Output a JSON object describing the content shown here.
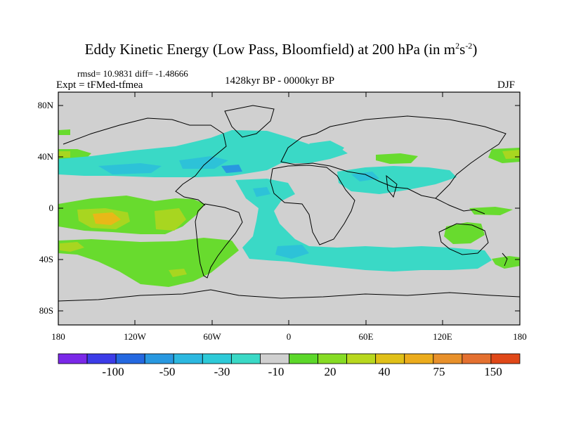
{
  "title_main": "Eddy Kinetic Energy (Low Pass, Bloomfield) at 200 hPa (in m",
  "title_units_sup1": "2",
  "title_units_s": "s",
  "title_units_sup2": "-2",
  "title_close": ")",
  "stats": "rmsd= 10.9831 diff= -1.48666",
  "experiment": "Expt = tFMed-tfmea",
  "period": "1428kyr BP - 0000kyr BP",
  "season": "DJF",
  "map": {
    "lat_ticks": [
      "80N",
      "40N",
      "0",
      "40S",
      "80S"
    ],
    "lon_ticks": [
      "180",
      "120W",
      "60W",
      "0",
      "60E",
      "120E",
      "180"
    ],
    "background_color": "#d0d0d0",
    "colors": {
      "neg_small": "#3ad9c6",
      "neg_mid": "#2dc2d8",
      "neg_large": "#2898e0",
      "pos_small": "#68db2e",
      "pos_mid": "#a8d620",
      "pos_large": "#e8b818",
      "pos_max": "#e88a2a"
    }
  },
  "colorbar": {
    "colors": [
      "#7a28e8",
      "#3c3ce8",
      "#2468e0",
      "#2898e0",
      "#2cb8e0",
      "#2dcad8",
      "#3ad9c6",
      "#d0d0d0",
      "#5cd82a",
      "#86dc24",
      "#b8d81e",
      "#e0c018",
      "#ecac1c",
      "#e8902a",
      "#e47030",
      "#e04818"
    ],
    "labels": [
      "-100",
      "-50",
      "-30",
      "-10",
      "20",
      "40",
      "75",
      "150"
    ]
  }
}
